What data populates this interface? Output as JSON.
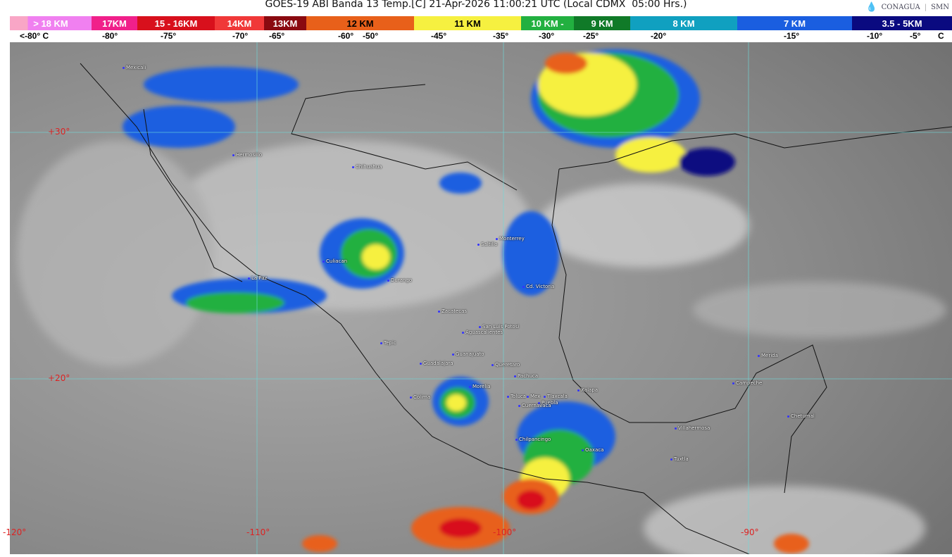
{
  "header": {
    "title": "GOES-19 ABI Banda 13 Temp.[C] 21-Apr-2026 11:00:21 UTC (Local CDMX  05:00 Hrs.)",
    "logos": [
      "CONAGUA",
      "SMN"
    ]
  },
  "legend": {
    "segments": [
      {
        "label": "> 18 KM",
        "color": "#f080f0",
        "start": "#f9a6c6"
      },
      {
        "label": "17KM",
        "color": "#f0208a"
      },
      {
        "label": "15 - 16KM",
        "color": "#d8101c"
      },
      {
        "label": "14KM",
        "color": "#f03838"
      },
      {
        "label": "13KM",
        "color": "#8a0a10"
      },
      {
        "label": "12 KM",
        "color": "#e8601a"
      },
      {
        "label": "11 KM",
        "color": "#f6f040"
      },
      {
        "label": "10 KM -",
        "color": "#22b040"
      },
      {
        "label": "9 KM",
        "color": "#107a28"
      },
      {
        "label": "8 KM",
        "color": "#10a0c0"
      },
      {
        "label": "7 KM",
        "color": "#1a5ee0"
      },
      {
        "label": "3.5 - 5KM",
        "color": "#0a0a80"
      }
    ],
    "temperatures": [
      "<-80° C",
      "-80°",
      "-75°",
      "-70°",
      "-65°",
      "-60°",
      "-50°",
      "-45°",
      "-35°",
      "-30°",
      "-25°",
      "-20°",
      "-15°",
      "-10°",
      "-5°",
      "C"
    ]
  },
  "map": {
    "latitude_labels": [
      "+30°",
      "+20°"
    ],
    "longitude_labels": [
      "-120°",
      "-110°",
      "-100°",
      "-90°"
    ],
    "cities": [
      "Mexicali",
      "Hermosillo",
      "Chihuahua",
      "Saltillo",
      "Monterrey",
      "Culiacan",
      "La Paz",
      "Durango",
      "Cd. Victoria",
      "Zacatecas",
      "San Luis Potosi",
      "Aguascalientes",
      "Tepic",
      "Guanajuato",
      "Guadalajara",
      "Queretaro",
      "Pachuca",
      "Morelia",
      "Xalapa",
      "Colima",
      "Toluca",
      "Mex",
      "Tlaxcala",
      "Puebla",
      "Cuernavaca",
      "Chilpancingo",
      "Oaxaca",
      "Villahermosa",
      "Tuxtla",
      "Merida",
      "Campeche",
      "Chetumal"
    ]
  }
}
